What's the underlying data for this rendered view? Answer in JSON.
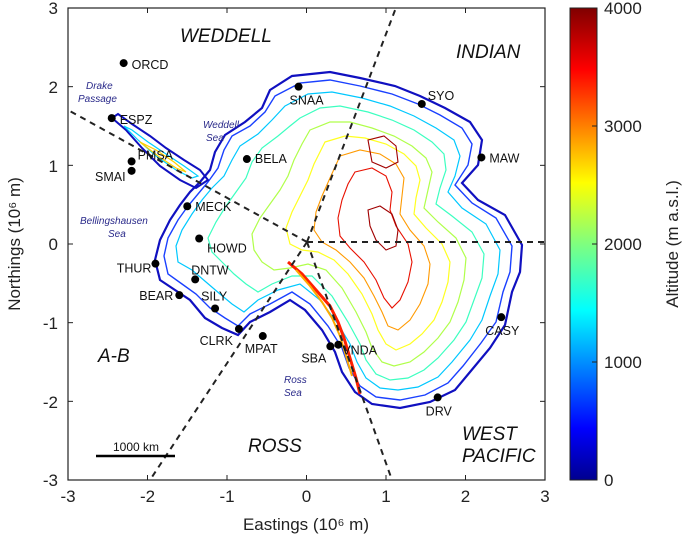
{
  "x_axis": {
    "label": "Eastings (10⁶ m)",
    "ticks": [
      "-3",
      "-2",
      "-1",
      "0",
      "1",
      "2",
      "3"
    ]
  },
  "y_axis": {
    "label": "Northings (10⁶ m)",
    "ticks": [
      "3",
      "2",
      "1",
      "0",
      "-1",
      "-2",
      "-3"
    ]
  },
  "colorbar": {
    "label": "Altitude (m a.s.l.)",
    "ticks": [
      "4000",
      "3000",
      "2000",
      "1000",
      "0"
    ]
  },
  "sectors": [
    "WEDDELL",
    "INDIAN",
    "WEST",
    "PACIFIC",
    "ROSS",
    "A-B"
  ],
  "seas": {
    "drake_1": "Drake",
    "drake_2": "Passage",
    "weddell_1": "Weddell",
    "weddell_2": "Sea",
    "bellingshausen_1": "Bellingshausen",
    "bellingshausen_2": "Sea",
    "ross_1": "Ross",
    "ross_2": "Sea"
  },
  "scale_bar": "1000 km",
  "stations": [
    {
      "name": "ORCD",
      "x": -2.3,
      "y": 2.3
    },
    {
      "name": "ESPZ",
      "x": -2.45,
      "y": 1.6
    },
    {
      "name": "PMSA",
      "x": -2.2,
      "y": 1.05
    },
    {
      "name": "SMAI",
      "x": -2.2,
      "y": 0.93
    },
    {
      "name": "SNAA",
      "x": -0.1,
      "y": 2.0
    },
    {
      "name": "SYO",
      "x": 1.45,
      "y": 1.78
    },
    {
      "name": "MAW",
      "x": 2.2,
      "y": 1.1
    },
    {
      "name": "BELA",
      "x": -0.75,
      "y": 1.08
    },
    {
      "name": "MECK",
      "x": -1.5,
      "y": 0.48
    },
    {
      "name": "HOWD",
      "x": -1.35,
      "y": 0.07
    },
    {
      "name": "THUR",
      "x": -1.9,
      "y": -0.25
    },
    {
      "name": "DNTW",
      "x": -1.4,
      "y": -0.45
    },
    {
      "name": "BEAR",
      "x": -1.6,
      "y": -0.65
    },
    {
      "name": "SILY",
      "x": -1.15,
      "y": -0.82
    },
    {
      "name": "CLRK",
      "x": -0.85,
      "y": -1.08
    },
    {
      "name": "MPAT",
      "x": -0.55,
      "y": -1.17
    },
    {
      "name": "SBA",
      "x": 0.3,
      "y": -1.3
    },
    {
      "name": "VNDA",
      "x": 0.4,
      "y": -1.28
    },
    {
      "name": "CASY",
      "x": 2.45,
      "y": -0.93
    },
    {
      "name": "DRV",
      "x": 1.65,
      "y": -1.95
    }
  ]
}
